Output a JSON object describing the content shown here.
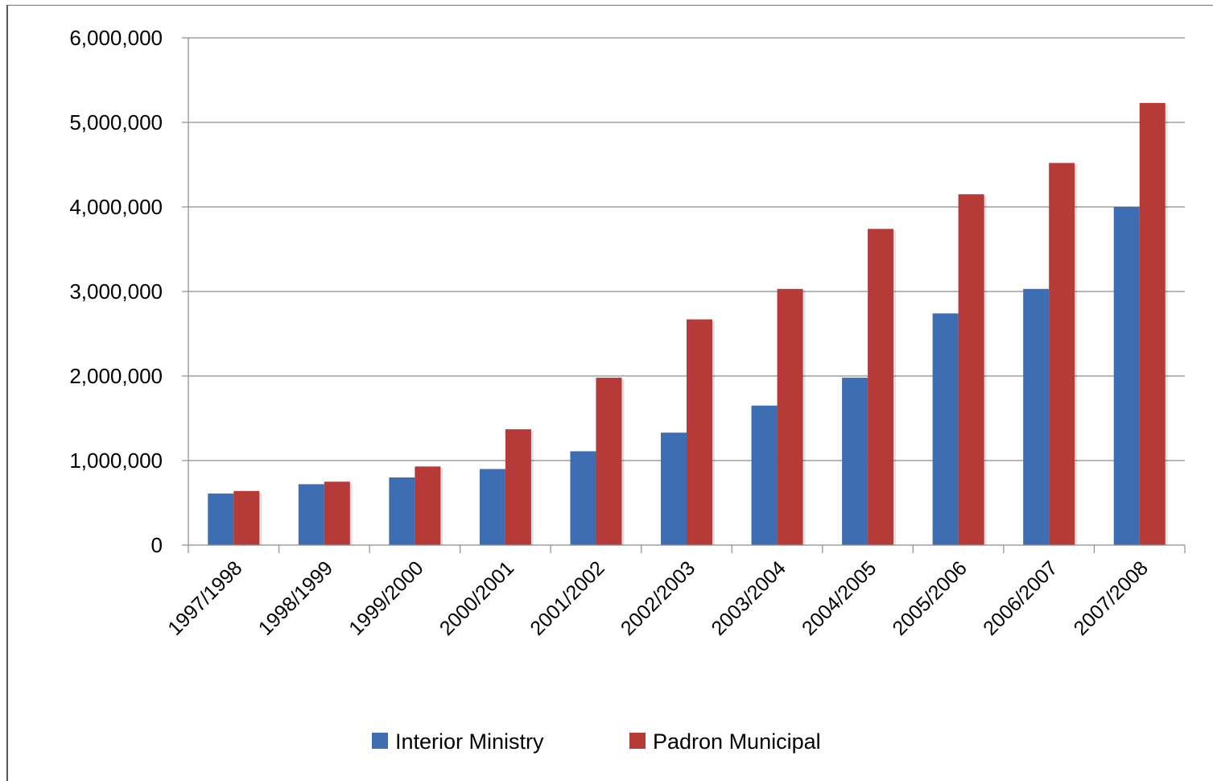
{
  "chart_data": {
    "type": "bar",
    "categories": [
      "1997/1998",
      "1998/1999",
      "1999/2000",
      "2000/2001",
      "2001/2002",
      "2002/2003",
      "2003/2004",
      "2004/2005",
      "2005/2006",
      "2006/2007",
      "2007/2008"
    ],
    "series": [
      {
        "name": "Interior Ministry",
        "color": "#3d6eb4",
        "values": [
          610000,
          720000,
          800000,
          900000,
          1110000,
          1330000,
          1650000,
          1980000,
          2740000,
          3030000,
          4000000
        ]
      },
      {
        "name": "Padron Municipal",
        "color": "#b63a38",
        "values": [
          640000,
          750000,
          930000,
          1370000,
          1980000,
          2670000,
          3030000,
          3740000,
          4150000,
          4520000,
          5230000
        ]
      }
    ],
    "y_ticks": [
      "0",
      "1,000,000",
      "2,000,000",
      "3,000,000",
      "4,000,000",
      "5,000,000",
      "6,000,000"
    ],
    "ylim": [
      0,
      6000000
    ],
    "grid": true,
    "legend_position": "bottom",
    "title": "",
    "xlabel": "",
    "ylabel": ""
  }
}
